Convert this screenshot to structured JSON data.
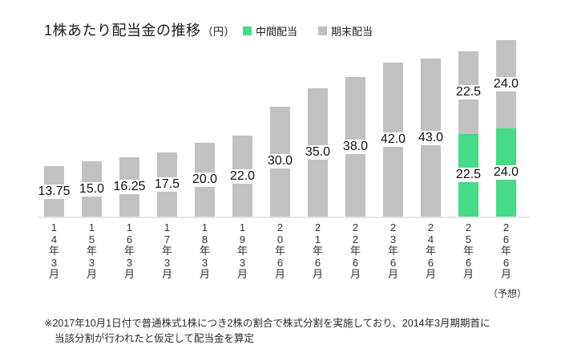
{
  "header": {
    "title": "1株あたり配当金の推移",
    "unit": "（円）",
    "legend": [
      {
        "label": "中間配当",
        "color": "#47da87"
      },
      {
        "label": "期末配当",
        "color": "#c1c1c1"
      }
    ]
  },
  "chart_data": {
    "type": "bar",
    "stacked": true,
    "title": "1株あたり配当金の推移（円）",
    "categories": [
      "14年3月",
      "15年3月",
      "16年3月",
      "17年3月",
      "18年3月",
      "19年3月",
      "20年6月",
      "21年6月",
      "22年6月",
      "23年6月",
      "24年6月",
      "25年6月",
      "26年6月"
    ],
    "series": [
      {
        "name": "中間配当",
        "color": "#47da87",
        "values": [
          0,
          0,
          0,
          0,
          0,
          0,
          0,
          0,
          0,
          0,
          0,
          22.5,
          24.0
        ],
        "labels": [
          "",
          "",
          "",
          "",
          "",
          "",
          "",
          "",
          "",
          "",
          "",
          "22.5",
          "24.0"
        ]
      },
      {
        "name": "期末配当",
        "color": "#c1c1c1",
        "values": [
          13.75,
          15.0,
          16.25,
          17.5,
          20.0,
          22.0,
          30.0,
          35.0,
          38.0,
          42.0,
          43.0,
          22.5,
          24.0
        ],
        "labels": [
          "13.75",
          "15.0",
          "16.25",
          "17.5",
          "20.0",
          "22.0",
          "30.0",
          "35.0",
          "38.0",
          "42.0",
          "43.0",
          "22.5",
          "24.0"
        ]
      }
    ],
    "totals": [
      13.75,
      15.0,
      16.25,
      17.5,
      20.0,
      22.0,
      30.0,
      35.0,
      38.0,
      42.0,
      43.0,
      45.0,
      48.0
    ],
    "ylim": [
      0,
      50
    ],
    "grid": false,
    "legend_position": "top",
    "forecast_note": "（予想）"
  },
  "footnote": {
    "line1": "※2017年10月1日付で普通株式1株につき2株の割合で株式分割を実施しており、2014年3月期期首に",
    "line2": "当該分割が行われたと仮定して配当金を算定"
  }
}
